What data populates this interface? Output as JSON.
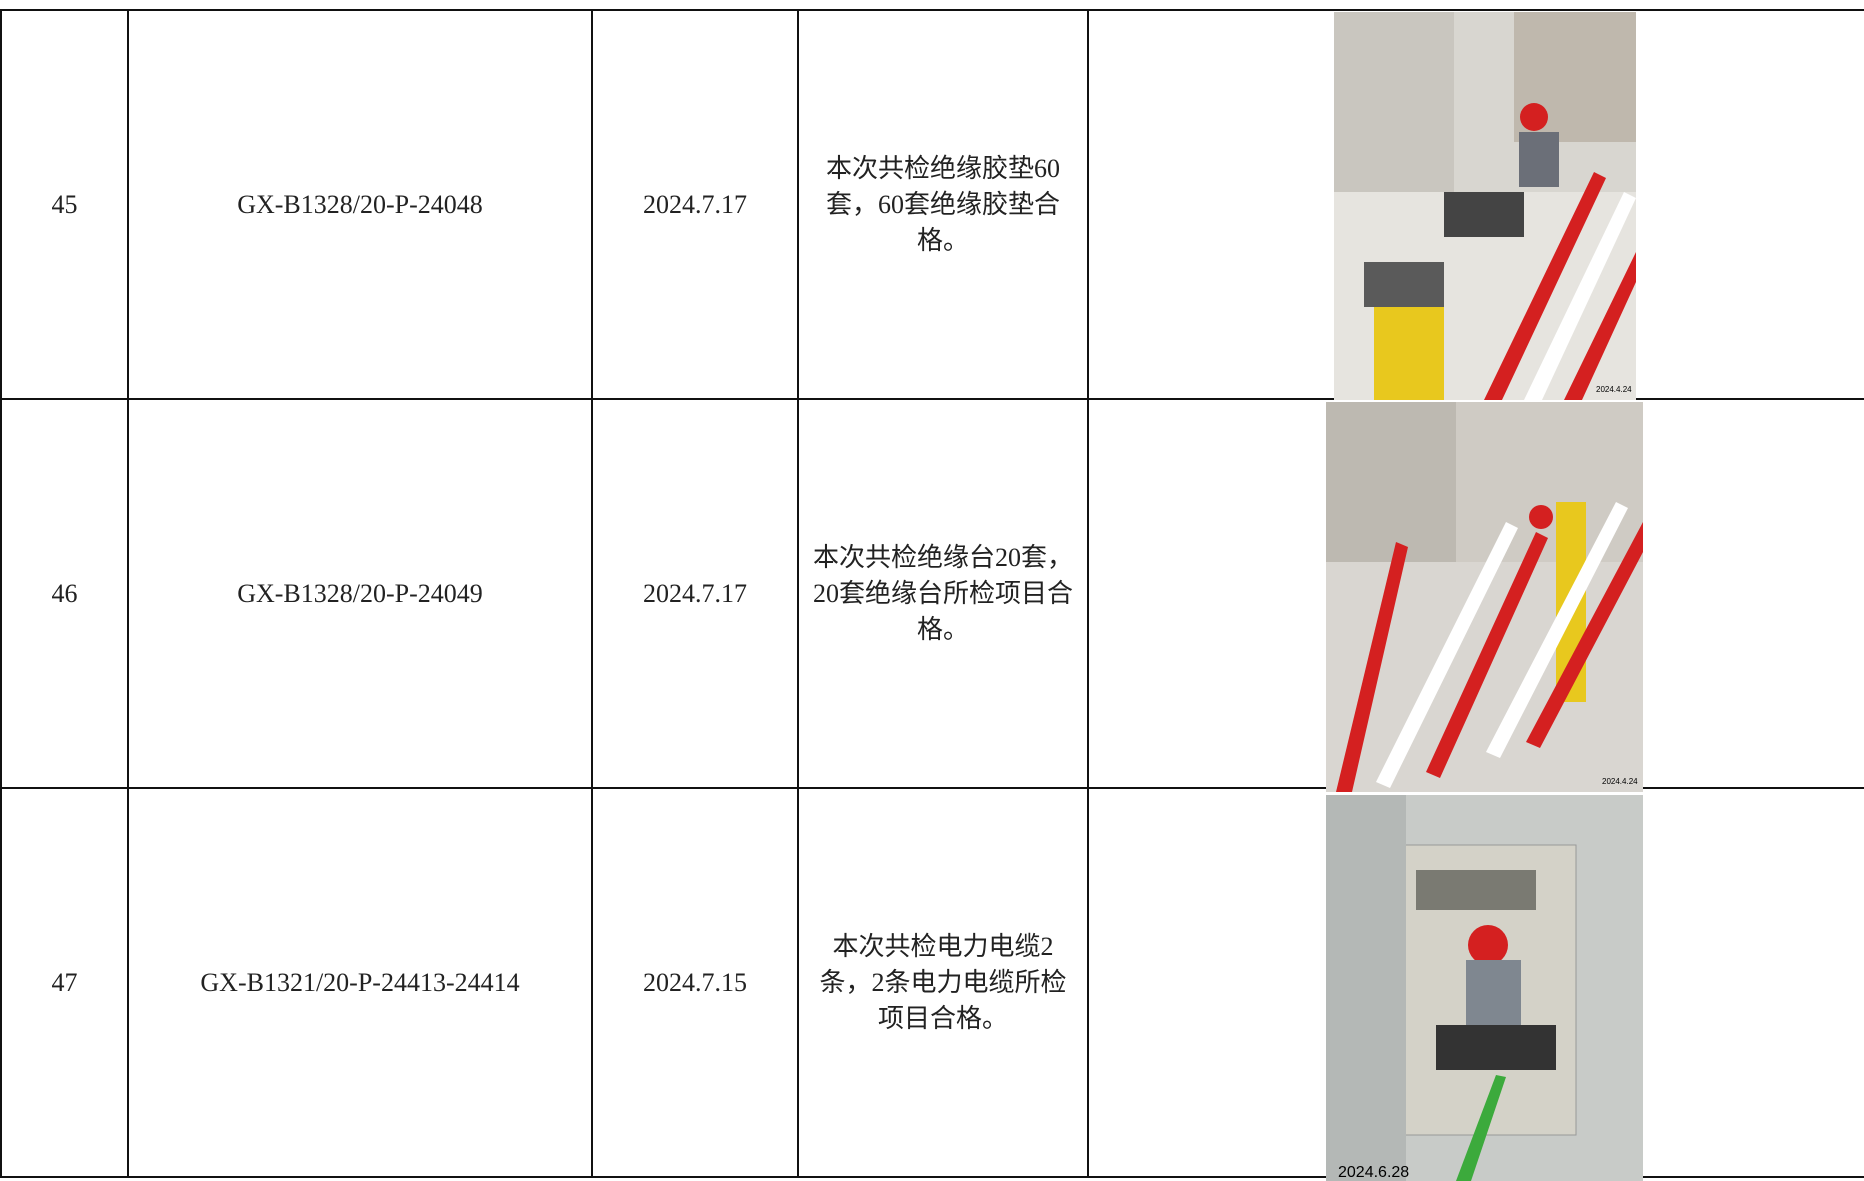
{
  "table": {
    "rows": [
      [
        "45",
        "GX-B1328/20-P-24048",
        "2024.7.17",
        "本次共检绝缘胶垫60套，60套绝缘胶垫合格。"
      ],
      [
        "46",
        "GX-B1328/20-P-24049",
        "2024.7.17",
        "本次共检绝缘台20套，20套绝缘台所检项目合格。"
      ],
      [
        "47",
        "GX-B1321/20-P-24413-24414",
        "2024.7.15",
        "本次共检电力电缆2条，2条电力电缆所检项目合格。"
      ]
    ]
  },
  "photos": [
    {
      "stamp": "2024.4.24"
    },
    {
      "stamp": "2024.4.24"
    },
    {
      "stamp": "2024.6.28"
    }
  ]
}
